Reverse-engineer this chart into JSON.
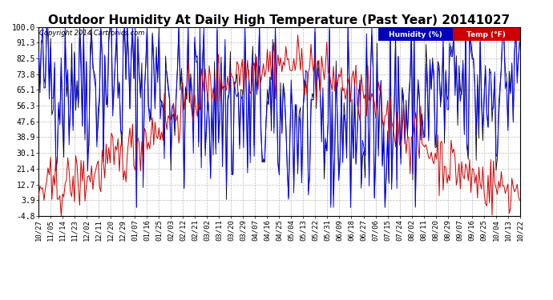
{
  "title": "Outdoor Humidity At Daily High Temperature (Past Year) 20141027",
  "copyright": "Copyright 2014 Cartronics.com",
  "yticks": [
    100.0,
    91.3,
    82.5,
    73.8,
    65.1,
    56.3,
    47.6,
    38.9,
    30.1,
    21.4,
    12.7,
    3.9,
    -4.8
  ],
  "ylim": [
    -4.8,
    100.0
  ],
  "xlabels": [
    "10/27",
    "11/05",
    "11/14",
    "11/23",
    "12/02",
    "12/11",
    "12/20",
    "12/29",
    "01/07",
    "01/16",
    "01/25",
    "02/03",
    "02/12",
    "02/21",
    "03/02",
    "03/11",
    "03/20",
    "03/29",
    "04/07",
    "04/16",
    "04/25",
    "05/04",
    "05/13",
    "05/22",
    "05/31",
    "06/09",
    "06/18",
    "06/27",
    "07/06",
    "07/15",
    "07/24",
    "08/02",
    "08/11",
    "08/20",
    "08/29",
    "09/07",
    "09/16",
    "09/25",
    "10/04",
    "10/13",
    "10/22"
  ],
  "legend_humidity_label": "Humidity (%)",
  "legend_temp_label": "Temp (°F)",
  "legend_humidity_bg": "#0000bb",
  "legend_temp_bg": "#cc0000",
  "bg_color": "#ffffff",
  "plot_bg_color": "#ffffff",
  "grid_color": "#aaaaaa",
  "title_fontsize": 11,
  "tick_fontsize": 6.5,
  "humidity_color": "#0000ff",
  "temp_color": "#cc0000",
  "black_color": "#000000",
  "figwidth": 6.9,
  "figheight": 3.75,
  "dpi": 100
}
